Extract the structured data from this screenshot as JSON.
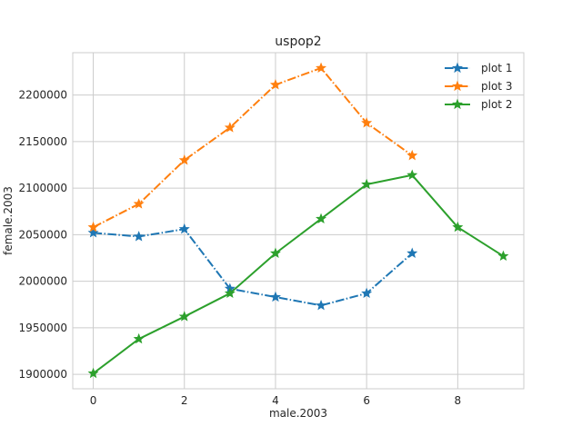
{
  "chart_data": {
    "type": "line",
    "title": "uspop2",
    "xlabel": "male.2003",
    "ylabel": "female.2003",
    "xlim": [
      -0.45,
      9.45
    ],
    "ylim": [
      1884500,
      2245500
    ],
    "xticks": [
      0,
      2,
      4,
      6,
      8
    ],
    "yticks": [
      1900000,
      1950000,
      2000000,
      2050000,
      2100000,
      2150000,
      2200000
    ],
    "grid": true,
    "legend_position": "top-right",
    "series": [
      {
        "name": "plot 1",
        "color": "#1f77b4",
        "linestyle": "dashdot",
        "marker": "star",
        "x": [
          0,
          1,
          2,
          3,
          4,
          5,
          6,
          7
        ],
        "y": [
          2052000,
          2048000,
          2056000,
          1992000,
          1983000,
          1974000,
          1987000,
          2030000
        ]
      },
      {
        "name": "plot 3",
        "color": "#ff7f0e",
        "linestyle": "dashdot",
        "marker": "star",
        "x": [
          0,
          1,
          2,
          3,
          4,
          5,
          6,
          7
        ],
        "y": [
          2058000,
          2083000,
          2130000,
          2165000,
          2211000,
          2229000,
          2170000,
          2135000
        ]
      },
      {
        "name": "plot 2",
        "color": "#2ca02c",
        "linestyle": "solid",
        "marker": "star",
        "x": [
          0,
          1,
          2,
          3,
          4,
          5,
          6,
          7,
          8,
          9
        ],
        "y": [
          1901000,
          1938000,
          1962000,
          1987000,
          2030000,
          2067000,
          2104000,
          2114000,
          2058000,
          2027000
        ]
      }
    ]
  }
}
